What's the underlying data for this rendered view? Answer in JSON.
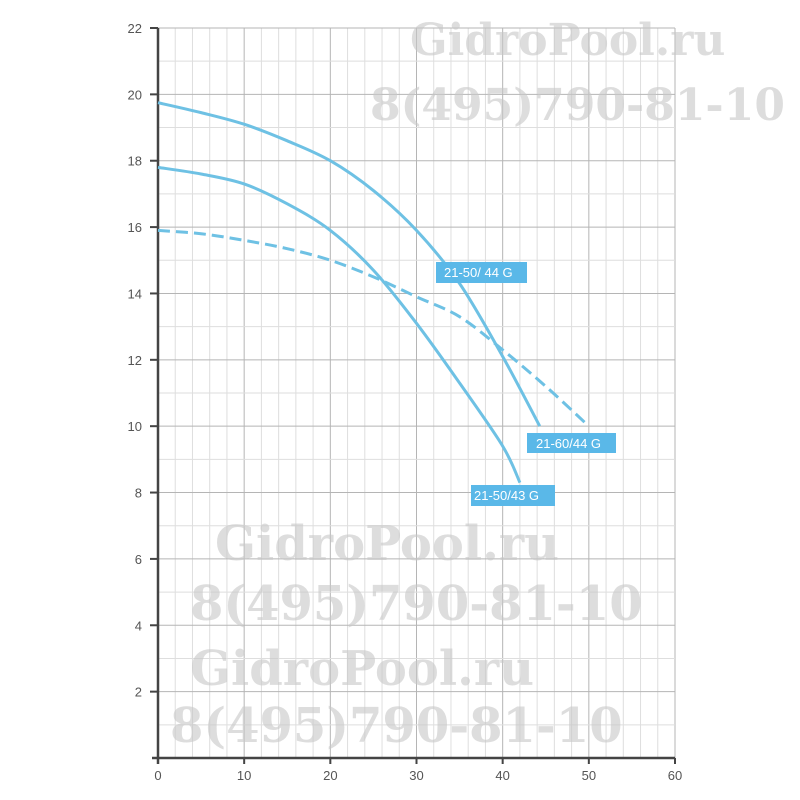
{
  "chart_data": {
    "type": "line",
    "title": "",
    "xlabel": "",
    "ylabel": "",
    "xlim": [
      0,
      60
    ],
    "ylim": [
      0,
      22
    ],
    "x_ticks": [
      "0",
      "10",
      "20",
      "30",
      "40",
      "50",
      "60"
    ],
    "y_ticks": [
      "2",
      "4",
      "6",
      "8",
      "10",
      "12",
      "14",
      "16",
      "18",
      "20",
      "22"
    ],
    "grid": true,
    "line_color": "#6ec1e4",
    "label_color": "#5ab8e8",
    "series": [
      {
        "name": "21-50/ 44 G",
        "style": "solid",
        "x": [
          0,
          5,
          10,
          15,
          20,
          25,
          30,
          35,
          40,
          44.3
        ],
        "y": [
          19.75,
          19.45,
          19.1,
          18.6,
          18.0,
          17.1,
          15.9,
          14.3,
          12.1,
          10.0
        ]
      },
      {
        "name": "21-50/43 G",
        "style": "solid",
        "x": [
          0,
          5,
          10,
          15,
          20,
          25,
          30,
          35,
          40,
          42
        ],
        "y": [
          17.8,
          17.6,
          17.3,
          16.7,
          15.9,
          14.7,
          13.1,
          11.3,
          9.4,
          8.3
        ]
      },
      {
        "name": "21-60/44 G",
        "style": "dashed",
        "x": [
          0,
          5,
          10,
          15,
          20,
          25,
          30,
          35,
          40,
          45,
          50
        ],
        "y": [
          15.9,
          15.8,
          15.6,
          15.35,
          15.0,
          14.5,
          13.9,
          13.3,
          12.3,
          11.2,
          10.0
        ]
      }
    ]
  },
  "watermarks": {
    "site": "GidroPool.ru",
    "phone": "8(495)790-81-10"
  }
}
